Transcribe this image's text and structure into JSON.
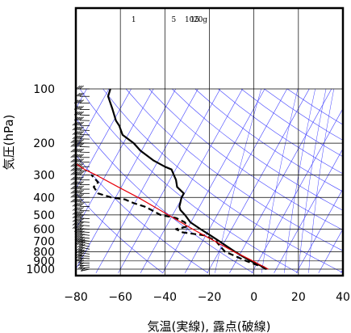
{
  "chart_data": {
    "type": "line",
    "subtype": "skew-T log-P aerological diagram",
    "xlabel": "気温(実線), 露点(破線)",
    "ylabel": "気圧(hPa)",
    "xlim": [
      -80,
      40
    ],
    "ylim": [
      1050,
      100
    ],
    "y_scale": "log",
    "x_ticks": [
      -80,
      -60,
      -40,
      -20,
      0,
      20,
      40
    ],
    "x_tick_labels": [
      "−80",
      "−60",
      "−40",
      "−20",
      "0",
      "20",
      "40"
    ],
    "y_ticks": [
      1000,
      900,
      800,
      700,
      600,
      500,
      400,
      300,
      200,
      100
    ],
    "y_tick_labels": [
      "1000",
      "900",
      "800",
      "700",
      "600",
      "500",
      "400",
      "300",
      "200",
      "100"
    ],
    "grid": true,
    "mixing_ratio_labels": [
      "1",
      "5",
      "10",
      "15",
      "20g"
    ],
    "colors": {
      "temperature": "#000000",
      "dewpoint": "#000000",
      "parcel": "#e8000b",
      "guide_lines": "#3f3fff",
      "grid": "#000000"
    },
    "series": [
      {
        "role": "temperature",
        "style": "solid",
        "points": [
          {
            "p": 1000,
            "t": 5.8
          },
          {
            "p": 975,
            "t": 4.5
          },
          {
            "p": 950,
            "t": 2.5
          },
          {
            "p": 925,
            "t": 0.5
          },
          {
            "p": 900,
            "t": -1.5
          },
          {
            "p": 850,
            "t": -5.0
          },
          {
            "p": 800,
            "t": -8.5
          },
          {
            "p": 750,
            "t": -12.0
          },
          {
            "p": 700,
            "t": -15.5
          },
          {
            "p": 650,
            "t": -19.5
          },
          {
            "p": 600,
            "t": -24.0
          },
          {
            "p": 550,
            "t": -28.5
          },
          {
            "p": 500,
            "t": -31.0
          },
          {
            "p": 470,
            "t": -33.0
          },
          {
            "p": 450,
            "t": -33.5
          },
          {
            "p": 400,
            "t": -32.5
          },
          {
            "p": 380,
            "t": -31.5
          },
          {
            "p": 350,
            "t": -34.5
          },
          {
            "p": 320,
            "t": -35.0
          },
          {
            "p": 300,
            "t": -36.0
          },
          {
            "p": 280,
            "t": -37.0
          },
          {
            "p": 270,
            "t": -40.0
          },
          {
            "p": 250,
            "t": -45.0
          },
          {
            "p": 220,
            "t": -51.0
          },
          {
            "p": 200,
            "t": -54.0
          },
          {
            "p": 180,
            "t": -59.0
          },
          {
            "p": 160,
            "t": -60.5
          },
          {
            "p": 150,
            "t": -62.0
          },
          {
            "p": 130,
            "t": -63.5
          },
          {
            "p": 110,
            "t": -65.5
          },
          {
            "p": 100,
            "t": -64.5
          }
        ]
      },
      {
        "role": "dewpoint",
        "style": "dashed",
        "points": [
          {
            "p": 1000,
            "t": 5.5
          },
          {
            "p": 975,
            "t": 4.0
          },
          {
            "p": 950,
            "t": 1.5
          },
          {
            "p": 925,
            "t": -1.0
          },
          {
            "p": 900,
            "t": -3.5
          },
          {
            "p": 850,
            "t": -8.0
          },
          {
            "p": 800,
            "t": -13.0
          },
          {
            "p": 750,
            "t": -15.0
          },
          {
            "p": 700,
            "t": -17.0
          },
          {
            "p": 650,
            "t": -22.0
          },
          {
            "p": 625,
            "t": -32.0
          },
          {
            "p": 600,
            "t": -35.0
          },
          {
            "p": 580,
            "t": -30.0
          },
          {
            "p": 550,
            "t": -31.0
          },
          {
            "p": 520,
            "t": -35.0
          },
          {
            "p": 500,
            "t": -42.0
          },
          {
            "p": 470,
            "t": -46.0
          },
          {
            "p": 450,
            "t": -49.0
          },
          {
            "p": 430,
            "t": -54.0
          },
          {
            "p": 410,
            "t": -58.0
          },
          {
            "p": 400,
            "t": -64.0
          },
          {
            "p": 380,
            "t": -70.0
          },
          {
            "p": 350,
            "t": -72.0
          },
          {
            "p": 330,
            "t": -70.0
          },
          {
            "p": 300,
            "t": -73.0
          }
        ]
      },
      {
        "role": "parcel",
        "style": "solid",
        "points": [
          {
            "p": 1000,
            "t": 6.5
          },
          {
            "p": 950,
            "t": 3.0
          },
          {
            "p": 900,
            "t": -0.5
          },
          {
            "p": 850,
            "t": -4.5
          },
          {
            "p": 800,
            "t": -9.0
          },
          {
            "p": 700,
            "t": -17.5
          },
          {
            "p": 600,
            "t": -27.5
          },
          {
            "p": 500,
            "t": -38.5
          },
          {
            "p": 400,
            "t": -52.0
          },
          {
            "p": 350,
            "t": -61.0
          },
          {
            "p": 300,
            "t": -71.0
          },
          {
            "p": 280,
            "t": -76.0
          },
          {
            "p": 260,
            "t": -80.0
          }
        ]
      }
    ],
    "winds": [
      {
        "p": 1000,
        "dir": 240,
        "spd": 10
      },
      {
        "p": 975,
        "dir": 250,
        "spd": 15
      },
      {
        "p": 950,
        "dir": 260,
        "spd": 20
      },
      {
        "p": 925,
        "dir": 270,
        "spd": 20
      },
      {
        "p": 900,
        "dir": 270,
        "spd": 25
      },
      {
        "p": 875,
        "dir": 280,
        "spd": 25
      },
      {
        "p": 850,
        "dir": 280,
        "spd": 25
      },
      {
        "p": 825,
        "dir": 290,
        "spd": 30
      },
      {
        "p": 800,
        "dir": 290,
        "spd": 30
      },
      {
        "p": 775,
        "dir": 300,
        "spd": 30
      },
      {
        "p": 750,
        "dir": 300,
        "spd": 35
      },
      {
        "p": 725,
        "dir": 300,
        "spd": 35
      },
      {
        "p": 700,
        "dir": 290,
        "spd": 35
      },
      {
        "p": 675,
        "dir": 290,
        "spd": 40
      },
      {
        "p": 650,
        "dir": 290,
        "spd": 40
      },
      {
        "p": 625,
        "dir": 280,
        "spd": 40
      },
      {
        "p": 600,
        "dir": 280,
        "spd": 45
      },
      {
        "p": 575,
        "dir": 280,
        "spd": 45
      },
      {
        "p": 550,
        "dir": 280,
        "spd": 45
      },
      {
        "p": 525,
        "dir": 280,
        "spd": 45
      },
      {
        "p": 500,
        "dir": 275,
        "spd": 50
      },
      {
        "p": 475,
        "dir": 275,
        "spd": 50
      },
      {
        "p": 450,
        "dir": 275,
        "spd": 50
      },
      {
        "p": 425,
        "dir": 270,
        "spd": 55
      },
      {
        "p": 400,
        "dir": 270,
        "spd": 55
      },
      {
        "p": 380,
        "dir": 270,
        "spd": 55
      },
      {
        "p": 360,
        "dir": 270,
        "spd": 60
      },
      {
        "p": 340,
        "dir": 270,
        "spd": 60
      },
      {
        "p": 320,
        "dir": 270,
        "spd": 60
      },
      {
        "p": 300,
        "dir": 270,
        "spd": 65
      },
      {
        "p": 285,
        "dir": 270,
        "spd": 65
      },
      {
        "p": 270,
        "dir": 270,
        "spd": 65
      },
      {
        "p": 255,
        "dir": 270,
        "spd": 60
      },
      {
        "p": 240,
        "dir": 270,
        "spd": 60
      },
      {
        "p": 225,
        "dir": 275,
        "spd": 60
      },
      {
        "p": 210,
        "dir": 275,
        "spd": 55
      },
      {
        "p": 200,
        "dir": 275,
        "spd": 55
      },
      {
        "p": 190,
        "dir": 275,
        "spd": 50
      },
      {
        "p": 180,
        "dir": 275,
        "spd": 50
      },
      {
        "p": 170,
        "dir": 275,
        "spd": 45
      },
      {
        "p": 160,
        "dir": 275,
        "spd": 45
      },
      {
        "p": 150,
        "dir": 275,
        "spd": 40
      },
      {
        "p": 140,
        "dir": 275,
        "spd": 40
      },
      {
        "p": 130,
        "dir": 270,
        "spd": 35
      },
      {
        "p": 120,
        "dir": 270,
        "spd": 35
      },
      {
        "p": 110,
        "dir": 270,
        "spd": 30
      },
      {
        "p": 100,
        "dir": 270,
        "spd": 30
      }
    ]
  }
}
